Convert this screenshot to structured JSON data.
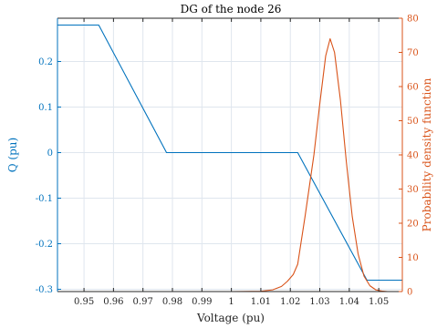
{
  "chart_data": {
    "type": "line",
    "title": "DG of the node 26",
    "xlabel": "Voltage (pu)",
    "ylabel_left": "Q (pu)",
    "ylabel_right": "Probability density function",
    "xlim": [
      0.941,
      1.058
    ],
    "ylim_left": [
      -0.305,
      0.295
    ],
    "ylim_right": [
      0,
      80
    ],
    "grid": true,
    "x_ticks": [
      0.95,
      0.96,
      0.97,
      0.98,
      0.99,
      1,
      1.01,
      1.02,
      1.03,
      1.04,
      1.05
    ],
    "x_tick_labels": [
      "0.95",
      "0.96",
      "0.97",
      "0.98",
      "0.99",
      "1",
      "1.01",
      "1.02",
      "1.03",
      "1.04",
      "1.05"
    ],
    "y_left_ticks": [
      -0.3,
      -0.2,
      -0.1,
      0,
      0.1,
      0.2
    ],
    "y_left_tick_labels": [
      "-0.3",
      "-0.2",
      "-0.1",
      "0",
      "0.1",
      "0.2"
    ],
    "y_right_ticks": [
      0,
      10,
      20,
      30,
      40,
      50,
      60,
      70,
      80
    ],
    "y_right_tick_labels": [
      "0",
      "10",
      "20",
      "30",
      "40",
      "50",
      "60",
      "70",
      "80"
    ],
    "colors": {
      "left": "#0072bd",
      "right": "#d95319",
      "grid": "#dfe6ee"
    },
    "series": [
      {
        "axis": "left",
        "x": [
          0.941,
          0.955,
          0.978,
          1.0225,
          1.046,
          1.058
        ],
        "y": [
          0.28,
          0.28,
          0.0,
          0.0,
          -0.28,
          -0.28
        ]
      },
      {
        "axis": "right",
        "x": [
          0.941,
          1.0,
          1.01,
          1.014,
          1.017,
          1.019,
          1.021,
          1.0225,
          1.025,
          1.028,
          1.03,
          1.032,
          1.0335,
          1.035,
          1.037,
          1.039,
          1.041,
          1.043,
          1.045,
          1.047,
          1.049,
          1.051,
          1.053,
          1.058
        ],
        "y": [
          0,
          0,
          0.1,
          0.5,
          1.5,
          3,
          5,
          8,
          22,
          40,
          55,
          69,
          74,
          70,
          56,
          38,
          22,
          11,
          4.5,
          1.7,
          0.5,
          0.15,
          0,
          0
        ]
      }
    ]
  }
}
